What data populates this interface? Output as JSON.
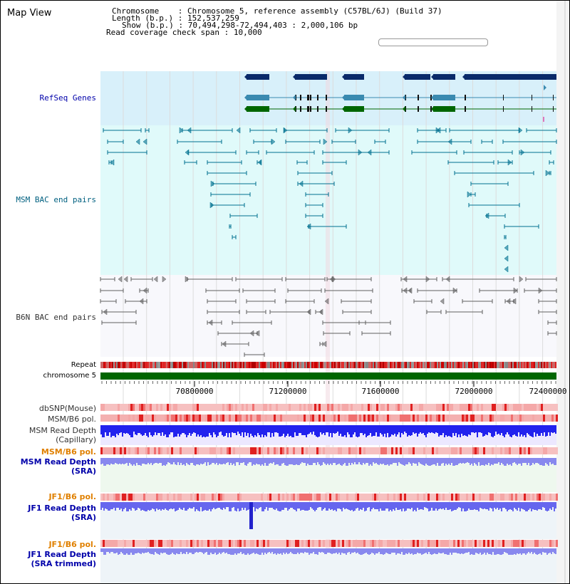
{
  "page_title": "Map View",
  "info": {
    "chromosome_key": "Chromosome",
    "chromosome_value": "Chromosome 5, reference assembly (C57BL/6J) (Build 37)",
    "length_key": "Length (b.p.)",
    "length_value": "152,537,259",
    "show_key": "Show (b.p.)",
    "show_value": "70,494,298-72,494,403 : 2,000,106 bp",
    "coverage_key": "Read coverage check span",
    "coverage_value": "10,000"
  },
  "tracks": {
    "refseq": "RefSeq Genes",
    "msm_bac": "MSM BAC end pairs",
    "b6n_bac": "B6N BAC end pairs",
    "repeat": "Repeat",
    "chromosome": "chromosome 5"
  },
  "axis": {
    "ticks": [
      "70800000",
      "71200000",
      "71600000",
      "72000000",
      "72400000"
    ]
  },
  "read_tracks": [
    {
      "name": "dbsnp",
      "lines": [
        "dbSNP(Mouse)"
      ],
      "color": "#333333"
    },
    {
      "name": "msm-b6-pol-1",
      "lines": [
        "MSM/B6 pol."
      ],
      "color": "#333333"
    },
    {
      "name": "msm-read-depth-capillary",
      "lines": [
        "MSM Read Depth",
        "(Capillary)"
      ],
      "color": "#333333"
    },
    {
      "name": "msm-b6-pol-2",
      "lines": [
        "MSM/B6 pol."
      ],
      "color": "#e08000"
    },
    {
      "name": "msm-read-depth-sra",
      "lines": [
        "MSM Read Depth",
        "(SRA)"
      ],
      "color": "#0000aa"
    },
    {
      "name": "jf1-b6-pol-1",
      "lines": [
        "JF1/B6 pol."
      ],
      "color": "#e08000"
    },
    {
      "name": "jf1-read-depth-sra",
      "lines": [
        "JF1 Read Depth",
        "(SRA)"
      ],
      "color": "#0000aa"
    },
    {
      "name": "jf1-b6-pol-2",
      "lines": [
        "JF1/B6 pol."
      ],
      "color": "#e08000"
    },
    {
      "name": "jf1-read-depth-sra-trimmed",
      "lines": [
        "JF1 Read Depth",
        "(SRA trimmed)"
      ],
      "color": "#0000aa"
    }
  ],
  "colors": {
    "refseq_bg": "#d8f0fa",
    "msm_bg": "#e0fafa",
    "gene_dark": "#0a2a6a",
    "gene_light": "#3a8ab0",
    "gene_green": "#006600",
    "msm_feature": "#007090",
    "b6n_feature": "#606060",
    "chromosome_bar": "#006600",
    "refseq_label": "#0000aa",
    "msm_label": "#006080",
    "b6n_label": "#333333"
  }
}
